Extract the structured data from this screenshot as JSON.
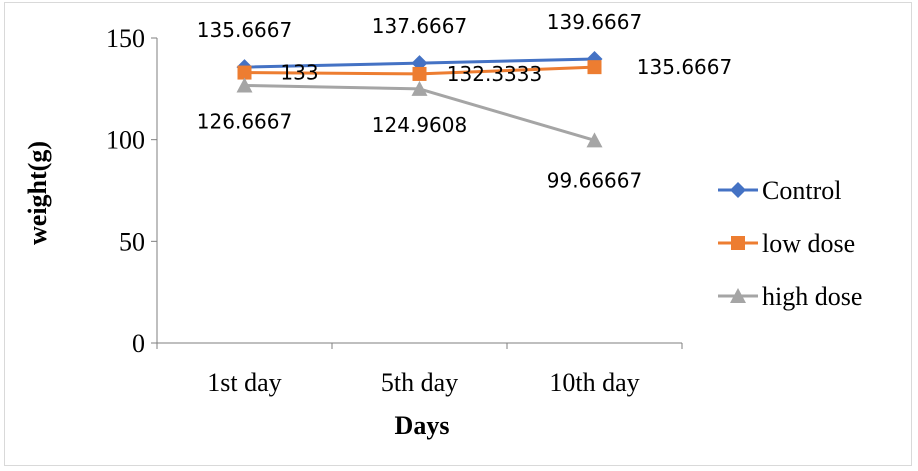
{
  "chart_data": {
    "type": "line",
    "categories": [
      "1st day",
      "5th day",
      "10th day"
    ],
    "series": [
      {
        "name": "Control",
        "values": [
          135.6667,
          137.6667,
          139.6667
        ],
        "labels": [
          "135.6667",
          "137.6667",
          "139.6667"
        ],
        "color": "#4472C4",
        "marker": "diamond"
      },
      {
        "name": "low dose",
        "values": [
          133,
          132.3333,
          135.6667
        ],
        "labels": [
          "133",
          "132.3333",
          "135.6667"
        ],
        "color": "#ED7D31",
        "marker": "square"
      },
      {
        "name": "high dose",
        "values": [
          126.6667,
          124.9608,
          99.66667
        ],
        "labels": [
          "126.6667",
          "124.9608",
          "99.66667"
        ],
        "color": "#A5A5A5",
        "marker": "triangle"
      }
    ],
    "title": "",
    "xlabel": "Days",
    "ylabel": "weight(g)",
    "ylim": [
      0,
      150
    ],
    "yticks": [
      "0",
      "50",
      "100",
      "150"
    ],
    "grid": false,
    "legend": "right"
  }
}
